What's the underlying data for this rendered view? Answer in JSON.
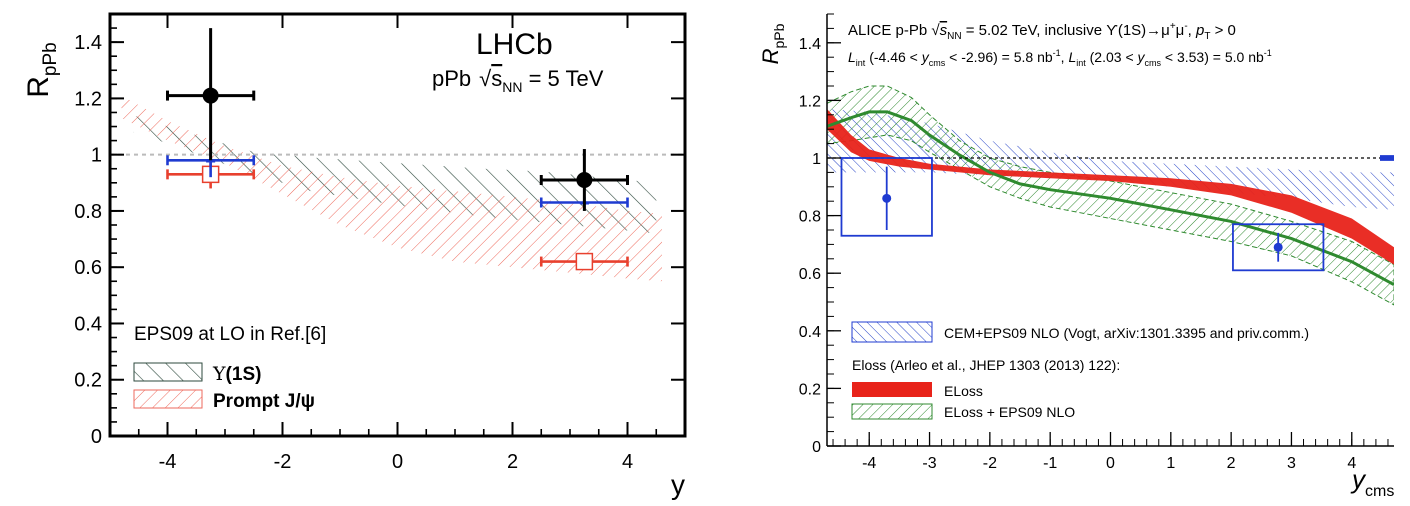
{
  "chart_data": [
    {
      "type": "scatter",
      "panel": "left",
      "title": "",
      "experiment_label": "LHCb",
      "energy_label": {
        "prefix": "pPb",
        "sqrt": "√",
        "s": "s",
        "sub": "NN",
        "suffix": " = 5 TeV"
      },
      "xlabel": "y",
      "ylabel": {
        "main": "R",
        "sub": "pPb"
      },
      "xlim": [
        -5,
        5
      ],
      "ylim": [
        0,
        1.5
      ],
      "xticks": [
        -4,
        -2,
        0,
        2,
        4
      ],
      "xtick_labels": [
        "-4",
        "-2",
        "0",
        "2",
        "4"
      ],
      "yticks": [
        0,
        0.2,
        0.4,
        0.6,
        0.8,
        1.0,
        1.2,
        1.4
      ],
      "ytick_labels": [
        "0",
        "0.2",
        "0.4",
        "0.6",
        "0.8",
        "1",
        "1.2",
        "1.4"
      ],
      "reference_line": 1.0,
      "series": [
        {
          "name": "LHCb Υ(1S)",
          "color": "#000000",
          "marker": "filled-circle",
          "points": [
            {
              "x": -3.25,
              "y": 1.21,
              "xerr": [
                0.75,
                0.75
              ],
              "yerr": [
                0.23,
                0.24
              ]
            },
            {
              "x": 3.25,
              "y": 0.91,
              "xerr": [
                0.75,
                0.75
              ],
              "yerr": [
                0.11,
                0.11
              ]
            }
          ]
        },
        {
          "name": "EPS09 Υ(1S) point",
          "color": "#1f3bd1",
          "marker": "star",
          "points": [
            {
              "x": -3.25,
              "y": 0.98,
              "xerr": [
                0.75,
                0.75
              ],
              "yerr": [
                0.06,
                0.06
              ]
            },
            {
              "x": 3.25,
              "y": 0.83,
              "xerr": [
                0.75,
                0.75
              ],
              "yerr": [
                0.02,
                0.02
              ]
            }
          ]
        },
        {
          "name": "Prompt J/ψ",
          "color": "#e8402e",
          "marker": "open-square",
          "points": [
            {
              "x": -3.25,
              "y": 0.93,
              "xerr": [
                0.75,
                0.75
              ],
              "yerr": [
                0.05,
                0.05
              ]
            },
            {
              "x": 3.25,
              "y": 0.62,
              "xerr": [
                0.75,
                0.75
              ],
              "yerr": [
                0.01,
                0.01
              ]
            }
          ]
        }
      ],
      "bands": [
        {
          "name": "Υ(1S)",
          "color": "#2e4a3e",
          "x": [
            -4.6,
            -4,
            -3.2,
            -2.5,
            -1.5,
            0,
            1.5,
            2.5,
            3.5,
            4.5
          ],
          "upper": [
            1.14,
            1.1,
            1.05,
            1.01,
            0.99,
            0.97,
            0.95,
            0.94,
            0.92,
            0.9
          ],
          "lower": [
            1.08,
            1.04,
            0.98,
            0.93,
            0.87,
            0.82,
            0.78,
            0.76,
            0.74,
            0.72
          ]
        },
        {
          "name": "Prompt J/ψ",
          "color": "#e8402e",
          "x": [
            -4.8,
            -4,
            -3,
            -2,
            -1,
            0,
            1,
            2,
            3,
            4,
            4.6
          ],
          "upper": [
            1.21,
            1.12,
            1.03,
            0.96,
            0.92,
            0.89,
            0.87,
            0.85,
            0.83,
            0.8,
            0.79
          ],
          "lower": [
            1.13,
            1.05,
            0.97,
            0.86,
            0.75,
            0.67,
            0.62,
            0.6,
            0.58,
            0.56,
            0.55
          ]
        }
      ],
      "legend": {
        "placement": "bottom-left",
        "header": "EPS09 at LO in Ref.[6]",
        "entries": [
          {
            "symbol": "Υ",
            "label": "(1S)",
            "color": "#2e4a3e"
          },
          {
            "symbol": "",
            "label": "Prompt J/ψ",
            "color": "#e8402e"
          }
        ]
      }
    },
    {
      "type": "scatter",
      "panel": "right",
      "title": "",
      "header_line1": {
        "a": "ALICE p-Pb ",
        "sqrt": "√",
        "s": "s",
        "sub": "NN",
        "b": " = 5.02 TeV, inclusive ϒ(1S)→μ",
        "sup1": "+",
        "c": "μ",
        "sup2": "-",
        "d": ", ",
        "pt": "p",
        "ptsub": "T",
        "e": " > 0"
      },
      "header_line2": {
        "l1": "L",
        "l1sub": "int",
        "a": " (-4.46 < ",
        "y1": "y",
        "y1sub": "cms",
        "b": " < -2.96) = 5.8 nb",
        "b_sup": "-1",
        "sep": ",  ",
        "l2": "L",
        "l2sub": "int",
        "c": " (2.03 < ",
        "y2": "y",
        "y2sub": "cms",
        "d": " < 3.53) = 5.0 nb",
        "d_sup": "-1"
      },
      "xlabel": {
        "main": "y",
        "sub": "cms"
      },
      "ylabel": {
        "main": "R",
        "sub": "pPb"
      },
      "xlim": [
        -4.7,
        4.7
      ],
      "ylim": [
        0,
        1.5
      ],
      "xticks": [
        -4,
        -3,
        -2,
        -1,
        0,
        1,
        2,
        3,
        4
      ],
      "xtick_labels": [
        "-4",
        "-3",
        "-2",
        "-1",
        "0",
        "1",
        "2",
        "3",
        "4"
      ],
      "yticks": [
        0,
        0.2,
        0.4,
        0.6,
        0.8,
        1.0,
        1.2,
        1.4
      ],
      "ytick_labels": [
        "0",
        "0.2",
        "0.4",
        "0.6",
        "0.8",
        "1",
        "1.2",
        "1.4"
      ],
      "reference_line": 1.0,
      "normalization_box": {
        "y": 1.0,
        "half_height": 0.01,
        "color": "#1f3bd1"
      },
      "series": [
        {
          "name": "ALICE inclusive Υ(1S)",
          "color": "#1f3bd1",
          "marker": "filled-circle",
          "points": [
            {
              "x": -3.71,
              "y": 0.86,
              "xlow": -4.46,
              "xhigh": -2.96,
              "stat": [
                0.11,
                0.11
              ],
              "sys": [
                0.13,
                0.14
              ]
            },
            {
              "x": 2.78,
              "y": 0.69,
              "xlow": 2.03,
              "xhigh": 3.53,
              "stat": [
                0.05,
                0.05
              ],
              "sys": [
                0.08,
                0.08
              ]
            }
          ]
        }
      ],
      "bands": [
        {
          "name": "CEM+EPS09 NLO",
          "color": "#1f3bd1",
          "x": [
            -4.7,
            -4,
            -3,
            -2,
            -1,
            0,
            1,
            2,
            3,
            4,
            4.7
          ],
          "upper": [
            1.17,
            1.16,
            1.12,
            1.06,
            1.02,
            0.99,
            0.98,
            0.97,
            0.96,
            0.95,
            0.95
          ],
          "lower": [
            0.95,
            0.95,
            0.95,
            0.94,
            0.93,
            0.92,
            0.9,
            0.88,
            0.86,
            0.83,
            0.82
          ]
        },
        {
          "name": "ELoss",
          "color": "#e8231a",
          "x": [
            -4.7,
            -4.3,
            -4,
            -3.5,
            -3,
            -2.5,
            -2,
            -1,
            0,
            1,
            2,
            3,
            4,
            4.7
          ],
          "upper": [
            1.17,
            1.08,
            1.03,
            1.0,
            0.98,
            0.97,
            0.96,
            0.95,
            0.94,
            0.93,
            0.91,
            0.87,
            0.79,
            0.69
          ],
          "lower": [
            1.1,
            1.02,
            0.99,
            0.97,
            0.96,
            0.95,
            0.94,
            0.93,
            0.92,
            0.9,
            0.87,
            0.81,
            0.72,
            0.63
          ]
        },
        {
          "name": "ELoss + EPS09 NLO",
          "color": "#2f8a2f",
          "x": [
            -4.7,
            -4.3,
            -4,
            -3.7,
            -3.3,
            -3,
            -2.5,
            -2,
            -1.5,
            -1,
            0,
            1,
            2,
            3,
            4,
            4.7
          ],
          "upper": [
            1.19,
            1.23,
            1.25,
            1.25,
            1.21,
            1.15,
            1.06,
            1.0,
            0.97,
            0.95,
            0.92,
            0.88,
            0.84,
            0.78,
            0.71,
            0.63
          ],
          "lower": [
            1.05,
            1.06,
            1.07,
            1.08,
            1.06,
            1.02,
            0.96,
            0.9,
            0.86,
            0.83,
            0.79,
            0.75,
            0.71,
            0.66,
            0.57,
            0.49
          ],
          "central": [
            1.11,
            1.14,
            1.16,
            1.16,
            1.13,
            1.08,
            1.01,
            0.95,
            0.91,
            0.89,
            0.86,
            0.82,
            0.78,
            0.72,
            0.64,
            0.56
          ]
        }
      ],
      "legend": {
        "placement": "bottom-left",
        "entries": [
          {
            "label": "CEM+EPS09 NLO (Vogt, arXiv:1301.3395 and priv.comm.)",
            "color": "#1f3bd1",
            "style": "hatched"
          },
          {
            "label": "Eloss (Arleo et al., JHEP 1303 (2013) 122):",
            "color": "",
            "style": "header"
          },
          {
            "label": "ELoss",
            "color": "#e8231a",
            "style": "solid"
          },
          {
            "label": "ELoss + EPS09 NLO",
            "color": "#2f8a2f",
            "style": "hatched"
          }
        ]
      }
    }
  ]
}
